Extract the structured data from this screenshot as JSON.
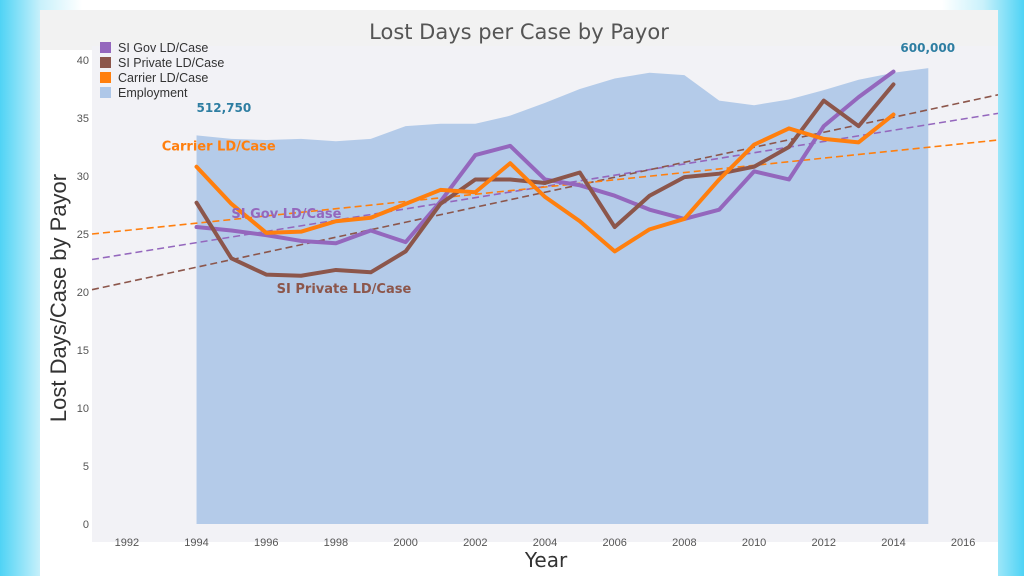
{
  "chart_data": {
    "type": "line",
    "title": "Lost Days per Case by Payor",
    "xlabel": "Year",
    "ylabel": "Lost Days/Case by Payor",
    "xlim": [
      1991,
      2017
    ],
    "ylim": [
      0,
      40
    ],
    "x_ticks": [
      1992,
      1994,
      1996,
      1998,
      2000,
      2002,
      2004,
      2006,
      2008,
      2010,
      2012,
      2014,
      2016
    ],
    "y_ticks": [
      0,
      5,
      10,
      15,
      20,
      25,
      30,
      35,
      40
    ],
    "grid": false,
    "legend": {
      "placement": "top-left",
      "entries": [
        {
          "label": "SI Gov LD/Case",
          "color": "#9467bd"
        },
        {
          "label": "SI Private LD/Case",
          "color": "#8c564b"
        },
        {
          "label": "Carrier LD/Case",
          "color": "#ff7f0e"
        },
        {
          "label": "Employment",
          "color": "#aec7e8"
        }
      ]
    },
    "area": {
      "name": "Employment",
      "color": "#b4cbe9",
      "x": [
        1994,
        1995,
        1996,
        1997,
        1998,
        1999,
        2000,
        2001,
        2002,
        2003,
        2004,
        2005,
        2006,
        2007,
        2008,
        2009,
        2010,
        2011,
        2012,
        2013,
        2014,
        2015
      ],
      "y": [
        33.5,
        33.2,
        33.1,
        33.2,
        33.0,
        33.2,
        34.3,
        34.5,
        34.5,
        35.2,
        36.3,
        37.5,
        38.4,
        38.9,
        38.7,
        36.5,
        36.1,
        36.6,
        37.4,
        38.3,
        38.9,
        39.3
      ]
    },
    "series": [
      {
        "name": "SI Gov LD/Case",
        "color": "#9467bd",
        "x": [
          1994,
          1995,
          1996,
          1997,
          1998,
          1999,
          2000,
          2001,
          2002,
          2003,
          2004,
          2005,
          2006,
          2007,
          2008,
          2009,
          2010,
          2011,
          2012,
          2013,
          2014
        ],
        "values": [
          25.6,
          25.3,
          24.9,
          24.4,
          24.2,
          25.3,
          24.3,
          27.8,
          31.8,
          32.6,
          29.7,
          29.2,
          28.3,
          27.1,
          26.3,
          27.1,
          30.4,
          29.7,
          34.3,
          36.8,
          39.0
        ]
      },
      {
        "name": "SI Private LD/Case",
        "color": "#8c564b",
        "x": [
          1994,
          1995,
          1996,
          1997,
          1998,
          1999,
          2000,
          2001,
          2002,
          2003,
          2004,
          2005,
          2006,
          2007,
          2008,
          2009,
          2010,
          2011,
          2012,
          2013,
          2014
        ],
        "values": [
          27.7,
          22.9,
          21.5,
          21.4,
          21.9,
          21.7,
          23.5,
          27.6,
          29.7,
          29.7,
          29.4,
          30.3,
          25.6,
          28.3,
          29.9,
          30.2,
          30.8,
          32.5,
          36.5,
          34.3,
          37.9
        ]
      },
      {
        "name": "Carrier LD/Case",
        "color": "#ff7f0e",
        "x": [
          1994,
          1995,
          1996,
          1997,
          1998,
          1999,
          2000,
          2001,
          2002,
          2003,
          2004,
          2005,
          2006,
          2007,
          2008,
          2009,
          2010,
          2011,
          2012,
          2013,
          2014
        ],
        "values": [
          30.8,
          27.6,
          25.1,
          25.2,
          26.1,
          26.4,
          27.6,
          28.8,
          28.6,
          31.1,
          28.2,
          26.1,
          23.5,
          25.4,
          26.3,
          29.7,
          32.7,
          34.1,
          33.2,
          32.9,
          35.3
        ]
      }
    ],
    "trendlines": [
      {
        "series": "SI Gov LD/Case",
        "color": "#9467bd",
        "x": [
          1991,
          2017
        ],
        "values": [
          22.8,
          35.4
        ]
      },
      {
        "series": "SI Private LD/Case",
        "color": "#8c564b",
        "x": [
          1991,
          2017
        ],
        "values": [
          20.2,
          37.0
        ]
      },
      {
        "series": "Carrier LD/Case",
        "color": "#ff7f0e",
        "x": [
          1991,
          2017
        ],
        "values": [
          25.0,
          33.1
        ]
      }
    ],
    "annotations": [
      {
        "text": "512,750",
        "x": 1994,
        "y": 35.5,
        "color": "#2e7ea2",
        "size": 12
      },
      {
        "text": "600,000",
        "x": 2014.2,
        "y": 40.7,
        "color": "#2e7ea2",
        "size": 12
      },
      {
        "text": "Carrier LD/Case",
        "x": 1993.0,
        "y": 32.2,
        "color": "#ff7f0e",
        "size": 13
      },
      {
        "text": "SI Gov LD/Case",
        "x": 1995.0,
        "y": 26.4,
        "color": "#9467bd",
        "size": 13
      },
      {
        "text": "SI Private LD/Case",
        "x": 1996.3,
        "y": 19.9,
        "color": "#8c564b",
        "size": 13
      }
    ]
  }
}
